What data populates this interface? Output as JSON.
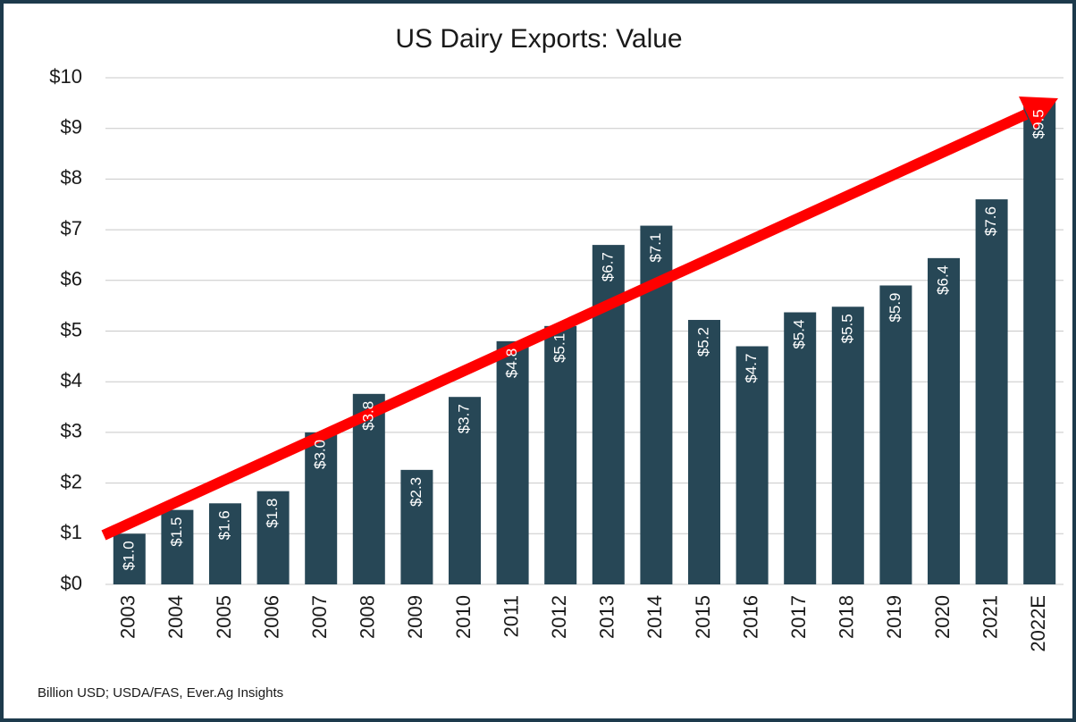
{
  "chart_data": {
    "type": "bar",
    "title": "US Dairy Exports: Value",
    "categories": [
      "2003",
      "2004",
      "2005",
      "2006",
      "2007",
      "2008",
      "2009",
      "2010",
      "2011",
      "2012",
      "2013",
      "2014",
      "2015",
      "2016",
      "2017",
      "2018",
      "2019",
      "2020",
      "2021",
      "2022E"
    ],
    "values": [
      1.0,
      1.47,
      1.6,
      1.84,
      3.0,
      3.76,
      2.26,
      3.7,
      4.8,
      5.1,
      6.7,
      7.08,
      5.22,
      4.7,
      5.37,
      5.48,
      5.9,
      6.44,
      7.6,
      9.52
    ],
    "value_labels": [
      "$1.0",
      "$1.5",
      "$1.6",
      "$1.8",
      "$3.0",
      "$3.8",
      "$2.3",
      "$3.7",
      "$4.8",
      "$5.1",
      "$6.7",
      "$7.1",
      "$5.2",
      "$4.7",
      "$5.4",
      "$5.5",
      "$5.9",
      "$6.4",
      "$7.6",
      "$9.5"
    ],
    "color": "#274756",
    "ylim": [
      0,
      10
    ],
    "yticks": [
      {
        "value": 0,
        "label": "$0"
      },
      {
        "value": 1,
        "label": "$1"
      },
      {
        "value": 2,
        "label": "$2"
      },
      {
        "value": 3,
        "label": "$3"
      },
      {
        "value": 4,
        "label": "$4"
      },
      {
        "value": 5,
        "label": "$5"
      },
      {
        "value": 6,
        "label": "$6"
      },
      {
        "value": 7,
        "label": "$7"
      },
      {
        "value": 8,
        "label": "$8"
      },
      {
        "value": 9,
        "label": "$9"
      },
      {
        "value": 10,
        "label": "$10"
      }
    ],
    "grid": true,
    "note": "Billion USD; USDA/FAS, Ever.Ag Insights"
  }
}
